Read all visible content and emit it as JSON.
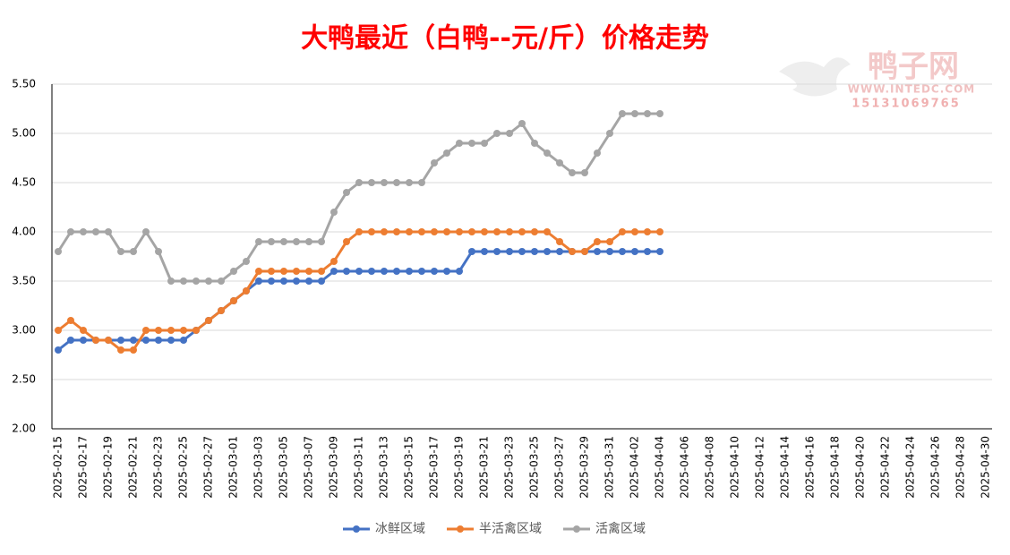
{
  "chart_data": {
    "type": "line",
    "title": "大鸭最近（白鸭--元/斤）价格走势",
    "annotations": [
      "鸭子网",
      "WWW.INTEDC.COM",
      "15131069765"
    ],
    "categories": [
      "2025-02-15",
      null,
      "2025-02-17",
      null,
      "2025-02-19",
      null,
      "2025-02-21",
      null,
      "2025-02-23",
      null,
      "2025-02-25",
      null,
      "2025-02-27",
      null,
      "2025-03-01",
      null,
      "2025-03-03",
      null,
      "2025-03-05",
      null,
      "2025-03-07",
      null,
      "2025-03-09",
      null,
      "2025-03-11",
      null,
      "2025-03-13",
      null,
      "2025-03-15",
      null,
      "2025-03-17",
      null,
      "2025-03-19",
      null,
      "2025-03-21",
      null,
      "2025-03-23",
      null,
      "2025-03-25",
      null,
      "2025-03-27",
      null,
      "2025-03-29",
      null,
      "2025-03-31",
      null,
      "2025-04-02",
      null,
      "2025-04-04",
      null,
      "2025-04-06",
      null,
      "2025-04-08",
      null,
      "2025-04-10",
      null,
      "2025-04-12",
      null,
      "2025-04-14",
      null,
      "2025-04-16",
      null,
      "2025-04-18",
      null,
      "2025-04-20",
      null,
      "2025-04-22",
      null,
      "2025-04-24",
      null,
      "2025-04-26",
      null,
      "2025-04-28",
      null,
      "2025-04-30"
    ],
    "series": [
      {
        "name": "冰鲜区域",
        "color": "#4472c4",
        "values": [
          2.8,
          2.9,
          2.9,
          2.9,
          2.9,
          2.9,
          2.9,
          2.9,
          2.9,
          2.9,
          2.9,
          3.0,
          3.1,
          3.2,
          3.3,
          3.4,
          3.5,
          3.5,
          3.5,
          3.5,
          3.5,
          3.5,
          3.6,
          3.6,
          3.6,
          3.6,
          3.6,
          3.6,
          3.6,
          3.6,
          3.6,
          3.6,
          3.6,
          3.8,
          3.8,
          3.8,
          3.8,
          3.8,
          3.8,
          3.8,
          3.8,
          3.8,
          3.8,
          3.8,
          3.8,
          3.8,
          3.8,
          3.8,
          3.8,
          null,
          null,
          null,
          null,
          null,
          null,
          null,
          null,
          null,
          null,
          null,
          null,
          null,
          null,
          null,
          null,
          null,
          null,
          null,
          null,
          null,
          null,
          null,
          null,
          null,
          null
        ]
      },
      {
        "name": "半活禽区域",
        "color": "#ed7d31",
        "values": [
          3.0,
          3.1,
          3.0,
          2.9,
          2.9,
          2.8,
          2.8,
          3.0,
          3.0,
          3.0,
          3.0,
          3.0,
          3.1,
          3.2,
          3.3,
          3.4,
          3.6,
          3.6,
          3.6,
          3.6,
          3.6,
          3.6,
          3.7,
          3.9,
          4.0,
          4.0,
          4.0,
          4.0,
          4.0,
          4.0,
          4.0,
          4.0,
          4.0,
          4.0,
          4.0,
          4.0,
          4.0,
          4.0,
          4.0,
          4.0,
          3.9,
          3.8,
          3.8,
          3.9,
          3.9,
          4.0,
          4.0,
          4.0,
          4.0,
          null,
          null,
          null,
          null,
          null,
          null,
          null,
          null,
          null,
          null,
          null,
          null,
          null,
          null,
          null,
          null,
          null,
          null,
          null,
          null,
          null,
          null,
          null,
          null,
          null,
          null
        ]
      },
      {
        "name": "活禽区域",
        "color": "#a5a5a5",
        "values": [
          3.8,
          4.0,
          4.0,
          4.0,
          4.0,
          3.8,
          3.8,
          4.0,
          3.8,
          3.5,
          3.5,
          3.5,
          3.5,
          3.5,
          3.6,
          3.7,
          3.9,
          3.9,
          3.9,
          3.9,
          3.9,
          3.9,
          4.2,
          4.4,
          4.5,
          4.5,
          4.5,
          4.5,
          4.5,
          4.5,
          4.7,
          4.8,
          4.9,
          4.9,
          4.9,
          5.0,
          5.0,
          5.1,
          4.9,
          4.8,
          4.7,
          4.6,
          4.6,
          4.8,
          5.0,
          5.2,
          5.2,
          5.2,
          5.2,
          null,
          null,
          null,
          null,
          null,
          null,
          null,
          null,
          null,
          null,
          null,
          null,
          null,
          null,
          null,
          null,
          null,
          null,
          null,
          null,
          null,
          null,
          null,
          null,
          null,
          null
        ]
      }
    ],
    "ylim": [
      2.0,
      5.5
    ],
    "yticks": [
      {
        "value": 2.0,
        "label": "2.00"
      },
      {
        "value": 2.5,
        "label": "2.50"
      },
      {
        "value": 3.0,
        "label": "3.00"
      },
      {
        "value": 3.5,
        "label": "3.50"
      },
      {
        "value": 4.0,
        "label": "4.00"
      },
      {
        "value": 4.5,
        "label": "4.50"
      },
      {
        "value": 5.0,
        "label": "5.00"
      },
      {
        "value": 5.5,
        "label": "5.50"
      }
    ],
    "grid": true,
    "legend": "bottom"
  }
}
